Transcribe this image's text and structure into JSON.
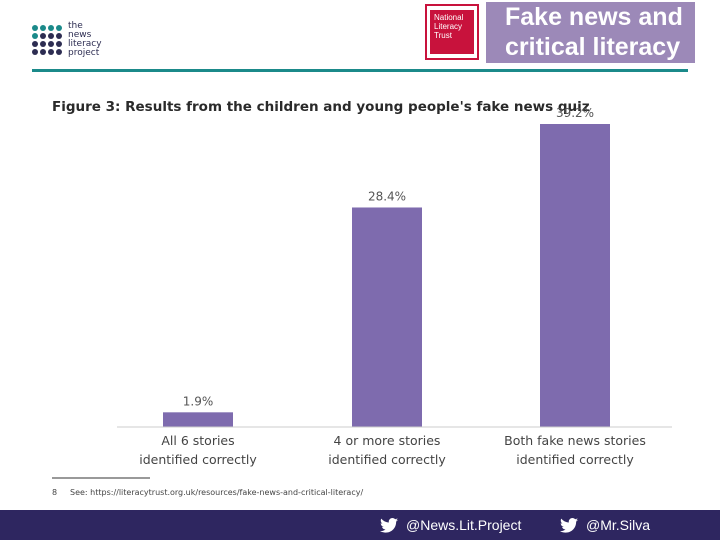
{
  "logo": {
    "lines": [
      "the",
      "news",
      "literacy",
      "project"
    ],
    "dot_colors": [
      "#1b8a8a",
      "#1b8a8a",
      "#1b8a8a",
      "#1b8a8a",
      "#1b8a8a",
      "#2d2d52",
      "#2d2d52",
      "#2d2d52",
      "#2d2d52",
      "#2d2d52",
      "#2d2d52",
      "#2d2d52",
      "#2d2d52",
      "#2d2d52",
      "#2d2d52",
      "#2d2d52"
    ]
  },
  "nlt_badge": {
    "lines": [
      "National",
      "Literacy",
      "Trust"
    ]
  },
  "banner": {
    "lines": [
      "Fake news and",
      "critical literacy"
    ]
  },
  "colors": {
    "bar": "#7e6bae",
    "footer": "#2e2660",
    "rule": "#1b8a8a",
    "banner": "#9c89b8"
  },
  "chart_data": {
    "type": "bar",
    "title": "Figure 3: Results from the children and young people's fake news quiz",
    "categories": [
      [
        "All 6 stories",
        "identified correctly"
      ],
      [
        "4 or more stories",
        "identified correctly"
      ],
      [
        "Both fake news stories",
        "identified correctly"
      ]
    ],
    "values": [
      1.9,
      28.4,
      39.2
    ],
    "value_labels": [
      "1.9%",
      "28.4%",
      "39.2%"
    ],
    "ylim": [
      0,
      40
    ],
    "grid": false,
    "legend": "none"
  },
  "footnote": {
    "number": "8",
    "text": "See: https://literacytrust.org.uk/resources/fake-news-and-critical-literacy/"
  },
  "footer": {
    "handles": [
      "@News.Lit.Project",
      "@Mr.Silva"
    ]
  }
}
